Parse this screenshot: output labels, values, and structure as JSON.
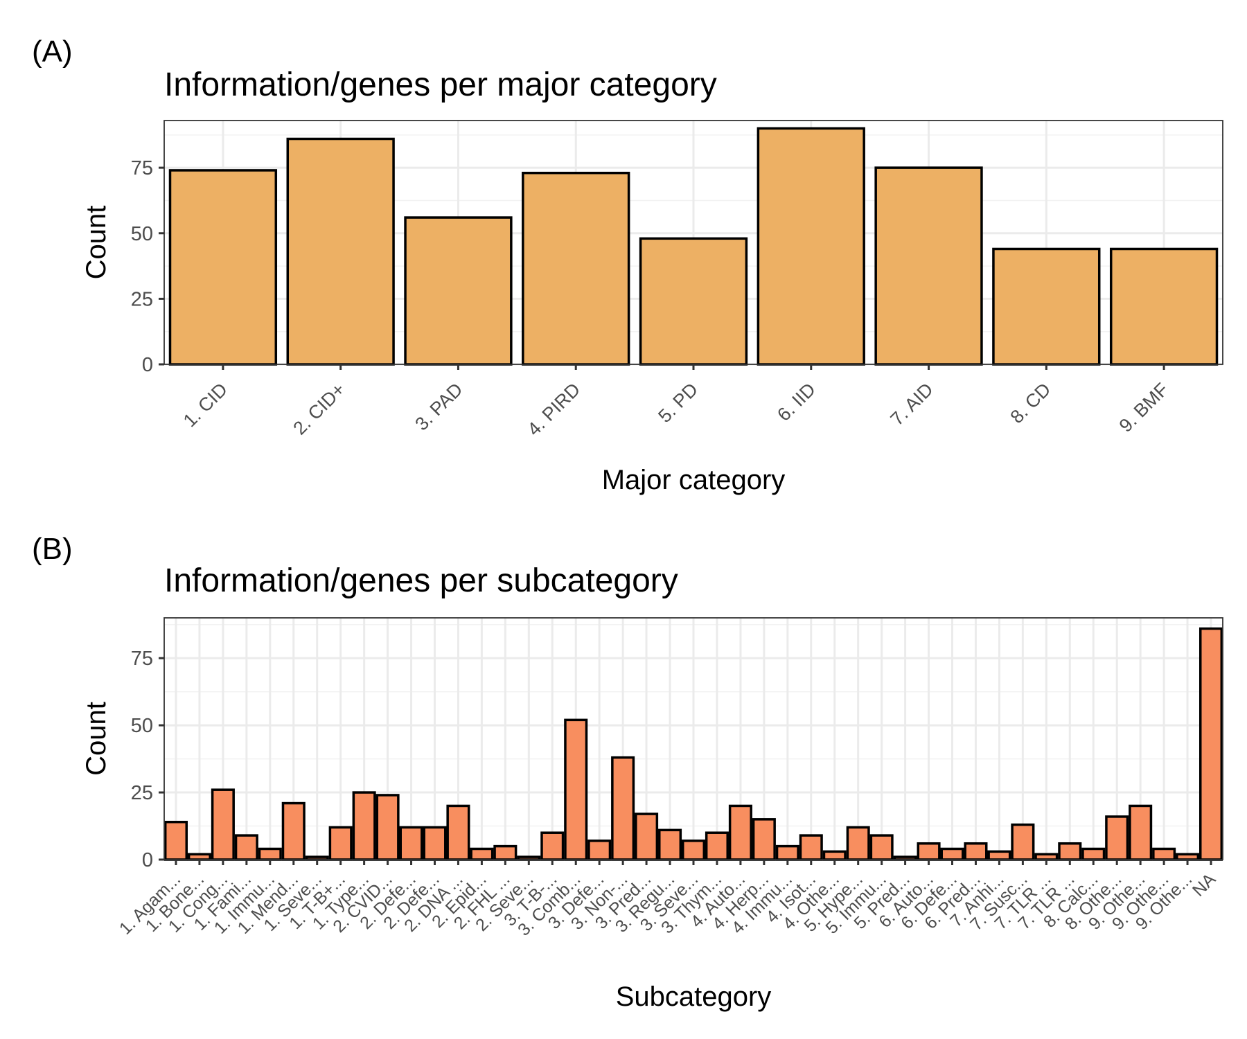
{
  "chart_data": [
    {
      "panel_label": "(A)",
      "type": "bar",
      "title": "Information/genes per major category",
      "xlabel": "Major category",
      "ylabel": "Count",
      "ylim": [
        0,
        93
      ],
      "yticks": [
        0,
        25,
        50,
        75
      ],
      "grid": true,
      "bar_color": "#EDB064",
      "bar_border_color": "#000000",
      "categories": [
        "1. CID",
        "2. CID+",
        "3. PAD",
        "4. PIRD",
        "5. PD",
        "6. IID",
        "7. AID",
        "8. CD",
        "9. BMF"
      ],
      "values": [
        74,
        86,
        56,
        73,
        48,
        90,
        75,
        44,
        44
      ]
    },
    {
      "panel_label": "(B)",
      "type": "bar",
      "title": "Information/genes per subcategory",
      "xlabel": "Subcategory",
      "ylabel": "Count",
      "ylim": [
        0,
        90
      ],
      "yticks": [
        0,
        25,
        50,
        75
      ],
      "grid": true,
      "bar_color": "#F88E5F",
      "bar_border_color": "#000000",
      "categories": [
        "1. Agam...",
        "1. Bone...",
        "1. Cong...",
        "1. Fami...",
        "1. Immu...",
        "1. Mend...",
        "1. Seve...",
        "1. T-B+...",
        "1. Type...",
        "2. CVID...",
        "2. Defe...",
        "2. Defe...",
        "2. DNA ...",
        "2. Epid...",
        "2. FHL ...",
        "2. Seve...",
        "3. T-B-...",
        "3. Comb...",
        "3. Defe...",
        "3. Non-...",
        "3. Pred...",
        "3. Regu...",
        "3. Seve...",
        "3. Thym...",
        "4. Auto...",
        "4. Herp...",
        "4. Immu...",
        "4. Isot...",
        "4. Othe...",
        "5. Hype...",
        "5. Immu...",
        "5. Pred...",
        "6. Auto...",
        "6. Defe...",
        "6. Pred...",
        "7. Anhi...",
        "7. Susc...",
        "7. TLR ...",
        "7. TLR ...",
        "8. Calc...",
        "8. Othe...",
        "9. Othe...",
        "9. Othe...",
        "9. Othe...",
        "NA"
      ],
      "values": [
        14,
        2,
        26,
        9,
        4,
        21,
        1,
        12,
        25,
        24,
        12,
        12,
        20,
        4,
        5,
        1,
        10,
        52,
        7,
        38,
        17,
        11,
        7,
        10,
        20,
        15,
        5,
        9,
        3,
        12,
        9,
        1,
        6,
        4,
        6,
        3,
        13,
        2,
        6,
        4,
        16,
        20,
        4,
        2,
        86
      ]
    }
  ]
}
